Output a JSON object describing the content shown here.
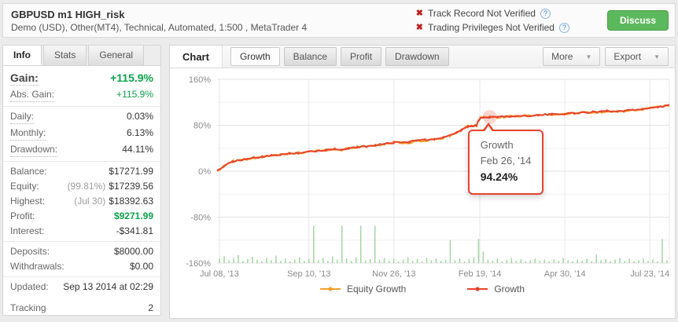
{
  "header": {
    "title": "GBPUSD m1 HIGH_risk",
    "subtitle": "Demo (USD), Other(MT4), Technical, Automated, 1:500 , MetaTrader 4",
    "verifications": [
      {
        "label": "Track Record Not Verified",
        "help": "?"
      },
      {
        "label": "Trading Privileges Not Verified",
        "help": "?"
      }
    ],
    "discuss_label": "Discuss"
  },
  "info_panel": {
    "tabs": [
      {
        "label": "Info",
        "active": true
      },
      {
        "label": "Stats",
        "active": false
      },
      {
        "label": "General",
        "active": false
      }
    ],
    "groups": [
      {
        "rows": [
          {
            "label": "Gain:",
            "value": "+115.9%",
            "style": "gain-big",
            "dots": true
          },
          {
            "label": "Abs. Gain:",
            "value": "+115.9%",
            "style": "green",
            "dots": true
          }
        ]
      },
      {
        "rows": [
          {
            "label": "Daily:",
            "value": "0.03%",
            "dots": true
          },
          {
            "label": "Monthly:",
            "value": "6.13%",
            "dots": true
          },
          {
            "label": "Drawdown:",
            "value": "44.11%",
            "dots": true
          }
        ]
      },
      {
        "rows": [
          {
            "label": "Balance:",
            "value": "$17271.99"
          },
          {
            "label": "Equity:",
            "prefix": "(99.81%)",
            "value": "$17239.56"
          },
          {
            "label": "Highest:",
            "prefix": "(Jul 30)",
            "value": "$18392.63"
          },
          {
            "label": "Profit:",
            "value": "$9271.99",
            "style": "green-bold"
          },
          {
            "label": "Interest:",
            "value": "-$341.81"
          }
        ]
      },
      {
        "rows": [
          {
            "label": "Deposits:",
            "value": "$8000.00"
          },
          {
            "label": "Withdrawals:",
            "value": "$0.00"
          }
        ]
      },
      {
        "rows": [
          {
            "label": "Updated:",
            "value": "Sep 13 2014 at 02:29"
          },
          {
            "label": "Tracking",
            "value": "2",
            "style": "spaced"
          }
        ]
      }
    ]
  },
  "chart_panel": {
    "active_tab": "Chart",
    "subtabs": [
      {
        "label": "Growth",
        "selected": true
      },
      {
        "label": "Balance",
        "selected": false
      },
      {
        "label": "Profit",
        "selected": false
      },
      {
        "label": "Drawdown",
        "selected": false
      }
    ],
    "buttons": [
      {
        "label": "More"
      },
      {
        "label": "Export"
      }
    ]
  },
  "chart_data": {
    "type": "line",
    "ylabel_format": "percent",
    "ylim": [
      -160,
      160
    ],
    "yticks": [
      160,
      80,
      0,
      -80,
      -160
    ],
    "yticks_minor": [
      120,
      40,
      -40,
      -120
    ],
    "x_labels": [
      {
        "label": "Jul 08, '13",
        "pos": 0.005
      },
      {
        "label": "Sep 10, '13",
        "pos": 0.203
      },
      {
        "label": "Nov 26, '13",
        "pos": 0.391
      },
      {
        "label": "Feb 19, '14",
        "pos": 0.581
      },
      {
        "label": "Apr 30, '14",
        "pos": 0.769
      },
      {
        "label": "Jul 23, '14",
        "pos": 0.957
      }
    ],
    "colors": {
      "growth": "#e8432d",
      "equity": "#f0a12e",
      "volume": "#a6d7a6",
      "grid": "#e2e2e2",
      "grid_minor": "#f0f0f0",
      "grid_vertical": "#e7e7e7",
      "axis_text": "#8a8a8a"
    },
    "series": [
      {
        "name": "Equity Growth",
        "color": "#f0a12e",
        "points": [
          [
            0,
            0
          ],
          [
            0.008,
            4
          ],
          [
            0.015,
            9
          ],
          [
            0.025,
            14
          ],
          [
            0.035,
            17
          ],
          [
            0.05,
            19.5
          ],
          [
            0.065,
            21.5
          ],
          [
            0.08,
            23
          ],
          [
            0.1,
            25
          ],
          [
            0.12,
            26.5
          ],
          [
            0.14,
            29
          ],
          [
            0.16,
            30.5
          ],
          [
            0.18,
            32
          ],
          [
            0.203,
            34
          ],
          [
            0.22,
            35.5
          ],
          [
            0.24,
            37
          ],
          [
            0.26,
            38.5
          ],
          [
            0.275,
            36
          ],
          [
            0.29,
            40
          ],
          [
            0.31,
            42
          ],
          [
            0.33,
            43.5
          ],
          [
            0.35,
            44
          ],
          [
            0.37,
            47.5
          ],
          [
            0.391,
            50
          ],
          [
            0.41,
            49.5
          ],
          [
            0.425,
            49
          ],
          [
            0.44,
            53.5
          ],
          [
            0.46,
            53
          ],
          [
            0.48,
            56
          ],
          [
            0.5,
            57
          ],
          [
            0.515,
            62
          ],
          [
            0.53,
            67
          ],
          [
            0.54,
            71.5
          ],
          [
            0.548,
            75
          ],
          [
            0.554,
            77.5
          ],
          [
            0.562,
            78.5
          ],
          [
            0.57,
            79
          ],
          [
            0.574,
            79.5
          ],
          [
            0.578,
            88
          ],
          [
            0.582,
            93
          ],
          [
            0.59,
            93.8
          ],
          [
            0.603,
            94.24
          ],
          [
            0.62,
            93.8
          ],
          [
            0.65,
            95.6
          ],
          [
            0.68,
            96.5
          ],
          [
            0.71,
            97.6
          ],
          [
            0.74,
            99
          ],
          [
            0.769,
            100
          ],
          [
            0.79,
            101
          ],
          [
            0.81,
            102
          ],
          [
            0.83,
            101.8
          ],
          [
            0.85,
            103
          ],
          [
            0.862,
            105
          ],
          [
            0.872,
            103
          ],
          [
            0.885,
            104.6
          ],
          [
            0.9,
            104.4
          ],
          [
            0.92,
            106.8
          ],
          [
            0.94,
            108
          ],
          [
            0.957,
            109.8
          ],
          [
            0.975,
            111.8
          ],
          [
            0.99,
            113.2
          ],
          [
            1,
            114.5
          ]
        ]
      },
      {
        "name": "Growth",
        "color": "#e8432d",
        "points": [
          [
            0,
            0
          ],
          [
            0.008,
            4
          ],
          [
            0.015,
            9
          ],
          [
            0.025,
            14
          ],
          [
            0.035,
            17
          ],
          [
            0.05,
            19.5
          ],
          [
            0.065,
            21.5
          ],
          [
            0.08,
            23
          ],
          [
            0.1,
            25
          ],
          [
            0.12,
            27
          ],
          [
            0.14,
            29
          ],
          [
            0.16,
            30.5
          ],
          [
            0.18,
            32
          ],
          [
            0.203,
            34
          ],
          [
            0.22,
            35.5
          ],
          [
            0.24,
            37
          ],
          [
            0.26,
            38.5
          ],
          [
            0.275,
            38
          ],
          [
            0.29,
            40
          ],
          [
            0.31,
            42
          ],
          [
            0.33,
            43.5
          ],
          [
            0.35,
            45.5
          ],
          [
            0.37,
            47.5
          ],
          [
            0.391,
            50
          ],
          [
            0.41,
            51.5
          ],
          [
            0.425,
            51
          ],
          [
            0.44,
            53.5
          ],
          [
            0.46,
            54.5
          ],
          [
            0.48,
            56
          ],
          [
            0.5,
            58.5
          ],
          [
            0.515,
            62
          ],
          [
            0.53,
            67
          ],
          [
            0.54,
            71.5
          ],
          [
            0.548,
            75
          ],
          [
            0.554,
            77.5
          ],
          [
            0.562,
            78.5
          ],
          [
            0.57,
            79
          ],
          [
            0.574,
            79.5
          ],
          [
            0.578,
            88
          ],
          [
            0.582,
            93
          ],
          [
            0.59,
            93.8
          ],
          [
            0.603,
            94.24
          ],
          [
            0.62,
            94.8
          ],
          [
            0.65,
            95.6
          ],
          [
            0.68,
            96.5
          ],
          [
            0.71,
            97.6
          ],
          [
            0.74,
            99
          ],
          [
            0.769,
            100
          ],
          [
            0.79,
            101
          ],
          [
            0.81,
            102
          ],
          [
            0.83,
            103
          ],
          [
            0.85,
            104.5
          ],
          [
            0.862,
            105
          ],
          [
            0.872,
            104.3
          ],
          [
            0.885,
            104.6
          ],
          [
            0.9,
            105.4
          ],
          [
            0.92,
            106.8
          ],
          [
            0.94,
            108
          ],
          [
            0.957,
            109.8
          ],
          [
            0.975,
            111.8
          ],
          [
            0.99,
            113.2
          ],
          [
            1,
            114.5
          ]
        ]
      }
    ],
    "volume_bars": {
      "heights": [
        8,
        12,
        5,
        9,
        14,
        4,
        7,
        11,
        6,
        3,
        9,
        5,
        13,
        4,
        8,
        3,
        6,
        10,
        4,
        7,
        65,
        5,
        9,
        4,
        12,
        6,
        65,
        8,
        4,
        10,
        65,
        5,
        7,
        65,
        6,
        9,
        4,
        8,
        3,
        6,
        10,
        4,
        7,
        3,
        9,
        5,
        8,
        4,
        6,
        40,
        5,
        8,
        3,
        7,
        10,
        42,
        20,
        6,
        4,
        8,
        3,
        6,
        9,
        4,
        7,
        3,
        5,
        8,
        4,
        6,
        3,
        7,
        4,
        9,
        5,
        3,
        6,
        4,
        8,
        3,
        15,
        5,
        7,
        3,
        6,
        9,
        4,
        7,
        3,
        5,
        8,
        4,
        6,
        3,
        42,
        5
      ]
    },
    "tooltip": {
      "series": "Growth",
      "date": "Feb 26, '14",
      "value": "94.24%",
      "x": 0.603,
      "y": 94.24
    },
    "legend": [
      {
        "label": "Equity Growth",
        "color": "#f0a12e"
      },
      {
        "label": "Growth",
        "color": "#e8432d"
      }
    ],
    "legend_position": "bottom-center",
    "grid": true
  }
}
